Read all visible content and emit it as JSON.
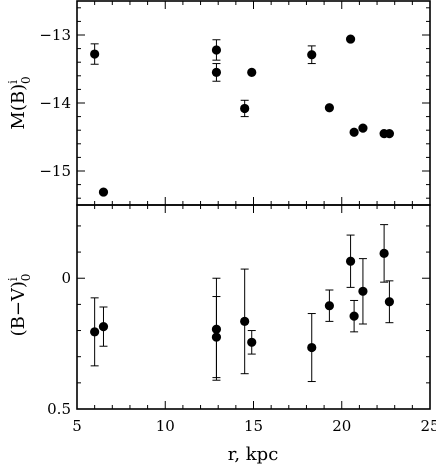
{
  "chart_data": [
    {
      "type": "scatter",
      "panel": "top",
      "ylabel": {
        "main": "M(B)",
        "sup": "i",
        "sub": "0"
      },
      "xlabel": "",
      "xlim": [
        5,
        25
      ],
      "ylim": [
        -12.5,
        -15.5
      ],
      "y_inverted": true,
      "xticks": [
        "5",
        "10",
        "15",
        "20",
        "25"
      ],
      "show_x_tick_labels": false,
      "yticks": [
        "−15",
        "−14",
        "−13"
      ],
      "ytick_values": [
        -15,
        -14,
        -13
      ],
      "points": [
        {
          "x": 6.0,
          "y": -13.28,
          "err": 0.15
        },
        {
          "x": 6.5,
          "y": -15.31,
          "err": 0
        },
        {
          "x": 12.9,
          "y": -13.55,
          "err": 0.13
        },
        {
          "x": 12.9,
          "y": -13.22,
          "err": 0.15
        },
        {
          "x": 14.5,
          "y": -14.08,
          "err": 0.12
        },
        {
          "x": 14.9,
          "y": -13.55,
          "err": 0
        },
        {
          "x": 18.3,
          "y": -13.29,
          "err": 0.13
        },
        {
          "x": 19.3,
          "y": -14.07,
          "err": 0
        },
        {
          "x": 20.5,
          "y": -13.06,
          "err": 0
        },
        {
          "x": 20.7,
          "y": -14.43,
          "err": 0
        },
        {
          "x": 21.2,
          "y": -14.37,
          "err": 0
        },
        {
          "x": 22.4,
          "y": -14.45,
          "err": 0
        },
        {
          "x": 22.7,
          "y": -14.45,
          "err": 0
        }
      ]
    },
    {
      "type": "scatter",
      "panel": "bottom",
      "ylabel": {
        "main": "(B−V)",
        "sup": "i",
        "sub": "0"
      },
      "xlabel": "r,  kpc",
      "xlim": [
        5,
        25
      ],
      "ylim": [
        -0.28,
        0.5
      ],
      "y_inverted": true,
      "xticks": [
        "5",
        "10",
        "15",
        "20",
        "25"
      ],
      "xtick_values": [
        5,
        10,
        15,
        20,
        25
      ],
      "show_x_tick_labels": true,
      "yticks": [
        "0",
        "0.5"
      ],
      "ytick_values": [
        0,
        0.5
      ],
      "points": [
        {
          "x": 6.0,
          "y": 0.205,
          "err": 0.13
        },
        {
          "x": 6.5,
          "y": 0.185,
          "err": 0.075
        },
        {
          "x": 12.9,
          "y": 0.195,
          "err": 0.195
        },
        {
          "x": 12.9,
          "y": 0.225,
          "err": 0.155
        },
        {
          "x": 14.5,
          "y": 0.165,
          "err": 0.2
        },
        {
          "x": 14.9,
          "y": 0.245,
          "err": 0.045
        },
        {
          "x": 18.3,
          "y": 0.265,
          "err": 0.13
        },
        {
          "x": 19.3,
          "y": 0.105,
          "err": 0.06
        },
        {
          "x": 20.5,
          "y": -0.065,
          "err": 0.1
        },
        {
          "x": 20.7,
          "y": 0.145,
          "err": 0.06
        },
        {
          "x": 21.2,
          "y": 0.05,
          "err": 0.125
        },
        {
          "x": 22.4,
          "y": -0.095,
          "err": 0.11
        },
        {
          "x": 22.7,
          "y": 0.09,
          "err": 0.08
        }
      ]
    }
  ]
}
